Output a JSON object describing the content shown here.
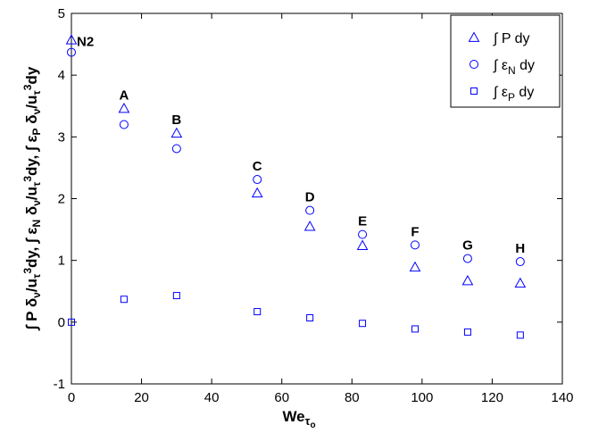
{
  "chart_data": {
    "type": "scatter",
    "xlabel": {
      "main": "We",
      "sub1": "τ",
      "sub2": "o"
    },
    "ylabel": {
      "p1": "∫ P δ",
      "p1s": "ν",
      "p2": "/u",
      "p2s": "τ",
      "p2p": "3",
      "p3": "dy, ∫ ε",
      "p3s": "N",
      "p4": " δ",
      "p4s": "ν",
      "p5": "/u",
      "p5s": "τ",
      "p5p": "3",
      "p6": "dy, ∫ ε",
      "p6s": "P",
      "p7": " δ",
      "p7s": "ν",
      "p8": "/u",
      "p8s": "τ",
      "p8p": "3",
      "p9": "dy"
    },
    "xlim": [
      0,
      140
    ],
    "ylim": [
      -1,
      5
    ],
    "xticks": [
      0,
      20,
      40,
      60,
      80,
      100,
      120,
      140
    ],
    "yticks": [
      -1,
      0,
      1,
      2,
      3,
      4,
      5
    ],
    "x": [
      0,
      15,
      30,
      53,
      68,
      83,
      98,
      113,
      128
    ],
    "point_labels": [
      "N2",
      "A",
      "B",
      "C",
      "D",
      "E",
      "F",
      "G",
      "H"
    ],
    "series": [
      {
        "name": "∫ P dy",
        "marker": "triangle",
        "values": [
          4.57,
          3.46,
          3.06,
          2.09,
          1.55,
          1.24,
          0.89,
          0.67,
          0.63
        ]
      },
      {
        "name": "∫ ε_N dy",
        "marker": "circle",
        "values": [
          4.37,
          3.2,
          2.81,
          2.31,
          1.81,
          1.42,
          1.25,
          1.03,
          0.98
        ]
      },
      {
        "name": "∫ ε_P dy",
        "marker": "square",
        "values": [
          0.0,
          0.37,
          0.43,
          0.17,
          0.07,
          -0.02,
          -0.11,
          -0.16,
          -0.21
        ]
      }
    ],
    "legend": {
      "position": "top-right",
      "entries": [
        {
          "pre": "∫ P dy",
          "sub": "",
          "post": ""
        },
        {
          "pre": "∫ ε",
          "sub": "N",
          "post": " dy"
        },
        {
          "pre": "∫ ε",
          "sub": "P",
          "post": " dy"
        }
      ]
    },
    "grid": false,
    "color": "#0000ff"
  }
}
